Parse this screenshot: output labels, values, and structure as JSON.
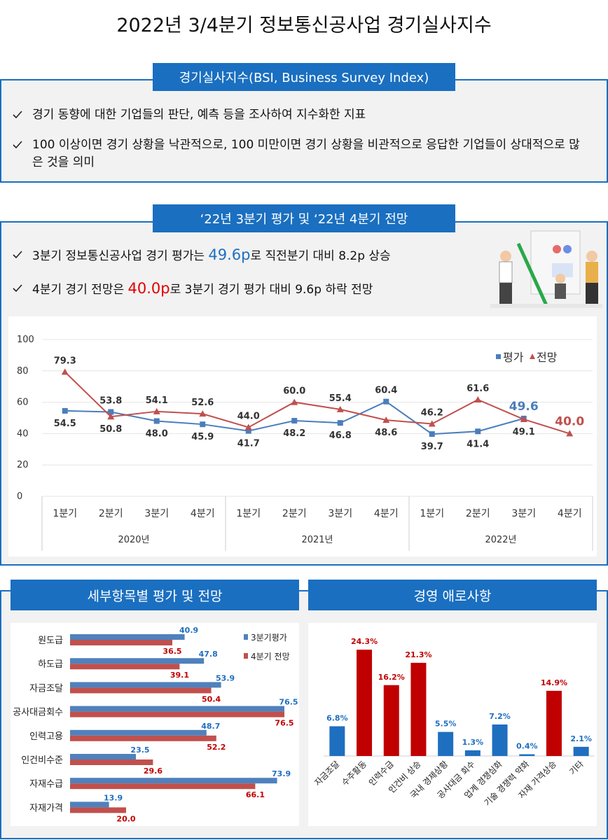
{
  "title": "2022년 3/4분기 정보통신공사업 경기실사지수",
  "sections": [
    {
      "header": "경기실사지수(BSI, Business Survey Index)",
      "bullets": [
        "경기 동향에 대한 기업들의 판단, 예측 등을 조사하여 지수화한 지표",
        "100 이상이면 경기 상황을 낙관적으로, 100 미만이면 경기 상황을 비관적으로 응답한 기업들이 상대적으로 많은 것을 의미"
      ]
    },
    {
      "header": "‘22년 3분기 평가 및 ‘22년 4분기 전망",
      "bullets": [
        {
          "before": "3분기 정보통신공사업 경기 평가는 ",
          "highlight": "49.6p",
          "after": "로 직전분기 대비 8.2p 상승",
          "color": "#1f6fc0"
        },
        {
          "before": "4분기 경기 전망은 ",
          "highlight": "40.0p",
          "after": "로 3분기 경기 평가 대비 9.6p 하락 전망",
          "color": "#e00000"
        }
      ]
    }
  ],
  "chart_data": [
    {
      "type": "line",
      "categories": [
        "1분기",
        "2분기",
        "3분기",
        "4분기",
        "1분기",
        "2분기",
        "3분기",
        "4분기",
        "1분기",
        "2분기",
        "3분기",
        "4분기"
      ],
      "category_groups": [
        "2020년",
        "2021년",
        "2022년"
      ],
      "series": [
        {
          "name": "평가",
          "color": "#4a7ebb",
          "marker": "square",
          "values": [
            54.5,
            53.8,
            48.0,
            45.9,
            41.7,
            48.2,
            46.8,
            60.4,
            39.7,
            41.4,
            49.6,
            null
          ],
          "value_labels": [
            "54.5",
            "53.8",
            "48.0",
            "45.9",
            "41.7",
            "48.2",
            "46.8",
            "60.4",
            "39.7",
            "41.4",
            "49.6",
            null
          ]
        },
        {
          "name": "전망",
          "color": "#c0504d",
          "marker": "triangle",
          "values": [
            79.3,
            50.8,
            54.1,
            52.6,
            44.0,
            60.0,
            55.4,
            48.6,
            46.2,
            61.6,
            49.1,
            40.0
          ],
          "value_labels": [
            "79.3",
            "50.8",
            "54.1",
            "52.6",
            "44.0",
            "60.0",
            "55.4",
            "48.6",
            "46.2",
            "61.6",
            "49.1",
            "40.0"
          ]
        }
      ],
      "ylim": [
        0,
        100
      ],
      "yticks": [
        0,
        20,
        40,
        60,
        80,
        100
      ],
      "grid": true,
      "legend": "upper-right"
    },
    {
      "type": "hbar",
      "title": "세부항목별 평가 및 전망",
      "categories": [
        "원도급",
        "하도급",
        "자금조달",
        "공사대금회수",
        "인력고용",
        "인건비수준",
        "자재수급",
        "자재가격"
      ],
      "series": [
        {
          "name": "3분기평가",
          "color": "#4f81bd",
          "label_color": "#1f6fc0",
          "values": [
            40.9,
            47.8,
            53.9,
            76.5,
            48.7,
            23.5,
            73.9,
            13.9
          ]
        },
        {
          "name": "4분기 전망",
          "color": "#c0504d",
          "label_color": "#c00000",
          "values": [
            36.5,
            39.1,
            50.4,
            76.5,
            52.2,
            29.6,
            66.1,
            20.0
          ],
          "value_labels": [
            "36.5",
            "39.1",
            "50.4",
            "76.5",
            "52.2",
            "29.6",
            "66.1",
            "20.0"
          ]
        }
      ],
      "xlim": [
        0,
        80
      ],
      "legend": "upper-right"
    },
    {
      "type": "bar",
      "title": "경영 애로사항",
      "categories": [
        "자금조달",
        "수주활동",
        "인력수급",
        "인건비 상승",
        "국내 경제상황",
        "공사대금 회수",
        "업계 경쟁심화",
        "기술 경쟁력 약화",
        "자재 가격상승",
        "기타"
      ],
      "values": [
        6.8,
        24.3,
        16.2,
        21.3,
        5.5,
        1.3,
        7.2,
        0.4,
        14.9,
        2.1
      ],
      "value_labels": [
        "6.8%",
        "24.3%",
        "16.2%",
        "21.3%",
        "5.5%",
        "1.3%",
        "7.2%",
        "0.4%",
        "14.9%",
        "2.1%"
      ],
      "colors": [
        "#1f6fc0",
        "#c00000",
        "#c00000",
        "#c00000",
        "#1f6fc0",
        "#1f6fc0",
        "#1f6fc0",
        "#1f6fc0",
        "#c00000",
        "#1f6fc0"
      ],
      "ylim": [
        0,
        28
      ]
    }
  ]
}
